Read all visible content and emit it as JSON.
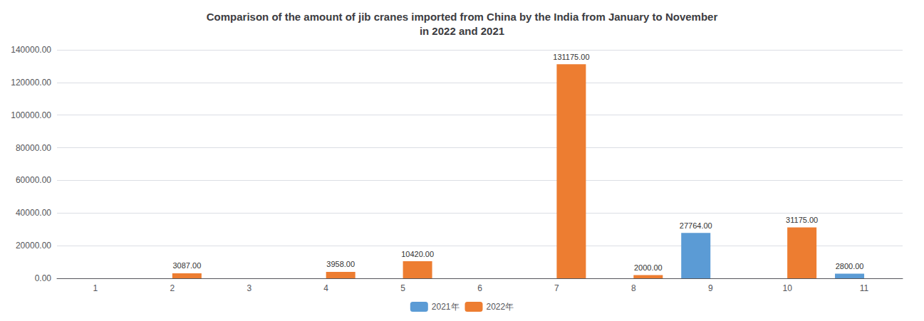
{
  "chart_data": {
    "type": "bar",
    "title": "Comparison of the amount of jib cranes imported from China by the India from January to November\nin 2022 and 2021",
    "categories": [
      "1",
      "2",
      "3",
      "4",
      "5",
      "6",
      "7",
      "8",
      "9",
      "10",
      "11"
    ],
    "series": [
      {
        "name": "2021年",
        "color": "#5B9BD5",
        "values": [
          0,
          0,
          0,
          0,
          0,
          0,
          0,
          0,
          27764.0,
          0,
          2800.0
        ],
        "value_labels": [
          null,
          null,
          null,
          null,
          null,
          null,
          null,
          null,
          "27764.00",
          null,
          "2800.00"
        ]
      },
      {
        "name": "2022年",
        "color": "#ED7D31",
        "values": [
          0,
          3087.0,
          0,
          3958.0,
          10420.0,
          0,
          131175.0,
          2000.0,
          0,
          31175.0,
          0
        ],
        "value_labels": [
          null,
          "3087.00",
          null,
          "3958.00",
          "10420.00",
          null,
          "131175.00",
          "2000.00",
          null,
          "31175.00",
          null
        ]
      }
    ],
    "ylim": [
      0,
      140000
    ],
    "yticks": [
      {
        "value": 0,
        "label": "0.00"
      },
      {
        "value": 20000,
        "label": "20000.00"
      },
      {
        "value": 40000,
        "label": "40000.00"
      },
      {
        "value": 60000,
        "label": "60000.00"
      },
      {
        "value": 80000,
        "label": "80000.00"
      },
      {
        "value": 100000,
        "label": "100000.00"
      },
      {
        "value": 120000,
        "label": "120000.00"
      },
      {
        "value": 140000,
        "label": "140000.00"
      }
    ],
    "grid": true,
    "legend": "bottom",
    "data_labels": true
  }
}
